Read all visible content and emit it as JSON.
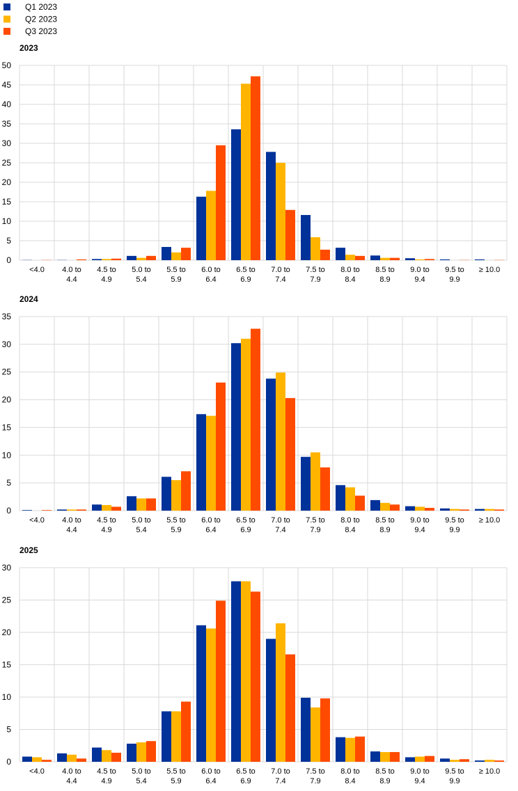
{
  "legend": [
    {
      "label": "Q1 2023",
      "color": "#003299"
    },
    {
      "label": "Q2 2023",
      "color": "#FFB400"
    },
    {
      "label": "Q3 2023",
      "color": "#FF4B00"
    }
  ],
  "chart_data": [
    {
      "type": "bar",
      "title": "2023",
      "categories": [
        "<4.0",
        "4.0 to 4.4",
        "4.5 to 4.9",
        "5.0 to 5.4",
        "5.5 to 5.9",
        "6.0 to 6.4",
        "6.5 to 6.9",
        "7.0 to 7.4",
        "7.5 to 7.9",
        "8.0 to 8.4",
        "8.5 to 8.9",
        "9.0 to 9.4",
        "9.5 to 9.9",
        "≥ 10.0"
      ],
      "ylim": [
        0,
        50
      ],
      "yticks": [
        0,
        5,
        10,
        15,
        20,
        25,
        30,
        35,
        40,
        45,
        50
      ],
      "grid": true,
      "series": [
        {
          "name": "Q1 2023",
          "values": [
            0.05,
            0.05,
            0.3,
            1.1,
            3.4,
            16.3,
            33.6,
            27.8,
            11.6,
            3.2,
            1.2,
            0.5,
            0.2,
            0.2
          ]
        },
        {
          "name": "Q2 2023",
          "values": [
            0,
            0,
            0.3,
            0.6,
            2.0,
            17.8,
            45.3,
            25.0,
            5.9,
            1.4,
            0.6,
            0.2,
            0,
            0
          ]
        },
        {
          "name": "Q3 2023",
          "values": [
            0.05,
            0.2,
            0.4,
            1.1,
            3.2,
            29.5,
            47.2,
            12.9,
            2.7,
            1.1,
            0.6,
            0.3,
            0.05,
            0.05
          ]
        }
      ]
    },
    {
      "type": "bar",
      "title": "2024",
      "categories": [
        "<4.0",
        "4.0 to 4.4",
        "4.5 to 4.9",
        "5.0 to 5.4",
        "5.5 to 5.9",
        "6.0 to 6.4",
        "6.5 to 6.9",
        "7.0 to 7.4",
        "7.5 to 7.9",
        "8.0 to 8.4",
        "8.5 to 8.9",
        "9.0 to 9.4",
        "9.5 to 9.9",
        "≥ 10.0"
      ],
      "ylim": [
        0,
        35
      ],
      "yticks": [
        0,
        5,
        10,
        15,
        20,
        25,
        30,
        35
      ],
      "grid": true,
      "series": [
        {
          "name": "Q1 2023",
          "values": [
            0.1,
            0.2,
            1.1,
            2.6,
            6.1,
            17.4,
            30.2,
            23.8,
            9.7,
            4.6,
            1.9,
            0.8,
            0.4,
            0.3
          ]
        },
        {
          "name": "Q2 2023",
          "values": [
            0,
            0.2,
            1.0,
            2.2,
            5.5,
            17.1,
            31.0,
            24.9,
            10.5,
            4.2,
            1.4,
            0.7,
            0.3,
            0.3
          ]
        },
        {
          "name": "Q3 2023",
          "values": [
            0.1,
            0.2,
            0.7,
            2.2,
            7.1,
            23.1,
            32.8,
            20.3,
            7.8,
            2.7,
            1.1,
            0.5,
            0.2,
            0.2
          ]
        }
      ]
    },
    {
      "type": "bar",
      "title": "2025",
      "categories": [
        "<4.0",
        "4.0 to 4.4",
        "4.5 to 4.9",
        "5.0 to 5.4",
        "5.5 to 5.9",
        "6.0 to 6.4",
        "6.5 to 6.9",
        "7.0 to 7.4",
        "7.5 to 7.9",
        "8.0 to 8.4",
        "8.5 to 8.9",
        "9.0 to 9.4",
        "9.5 to 9.9",
        "≥ 10.0"
      ],
      "ylim": [
        0,
        30
      ],
      "yticks": [
        0,
        5,
        10,
        15,
        20,
        25,
        30
      ],
      "grid": true,
      "series": [
        {
          "name": "Q1 2023",
          "values": [
            0.8,
            1.3,
            2.2,
            2.8,
            7.8,
            21.1,
            27.9,
            19.0,
            9.9,
            3.8,
            1.6,
            0.7,
            0.5,
            0.2
          ]
        },
        {
          "name": "Q2 2023",
          "values": [
            0.7,
            1.1,
            1.8,
            3.0,
            7.8,
            20.6,
            27.9,
            21.4,
            8.4,
            3.7,
            1.5,
            0.8,
            0.3,
            0.3
          ]
        },
        {
          "name": "Q3 2023",
          "values": [
            0.3,
            0.5,
            1.4,
            3.2,
            9.3,
            24.9,
            26.3,
            16.6,
            9.8,
            3.9,
            1.5,
            0.9,
            0.4,
            0.2
          ]
        }
      ]
    }
  ]
}
